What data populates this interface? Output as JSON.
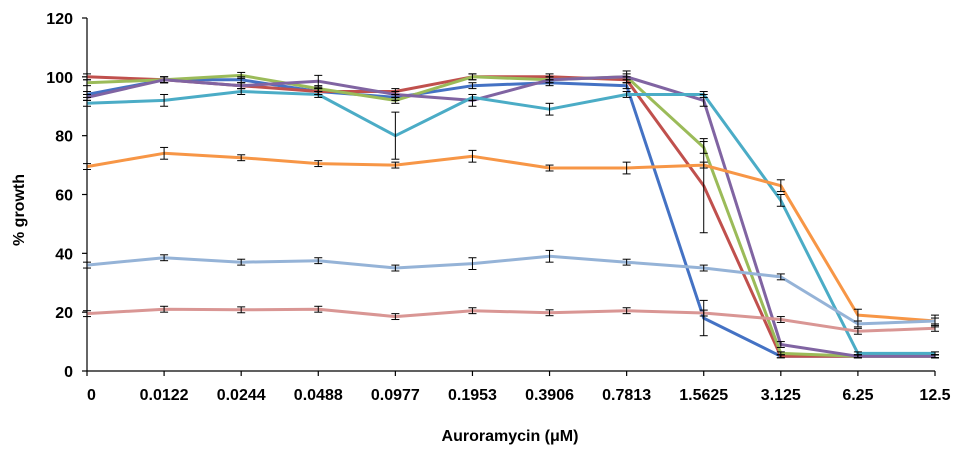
{
  "chart_data": {
    "type": "line",
    "xlabel": "Auroramycin (μM)",
    "ylabel": "% growth",
    "title": "",
    "categories": [
      "0",
      "0.0122",
      "0.0244",
      "0.0488",
      "0.0977",
      "0.1953",
      "0.3906",
      "0.7813",
      "1.5625",
      "3.125",
      "6.25",
      "12.5"
    ],
    "ylim": [
      0,
      120
    ],
    "yticks": [
      0,
      20,
      40,
      60,
      80,
      100,
      120
    ],
    "grid": false,
    "legend": "none",
    "series": [
      {
        "color": "#4472C4",
        "values": [
          94,
          99,
          99,
          95,
          93,
          97,
          98,
          97,
          18,
          5,
          5,
          5
        ],
        "errors": [
          1,
          1,
          1,
          1,
          1,
          1,
          1,
          1,
          6,
          0.5,
          0.5,
          0.5
        ]
      },
      {
        "color": "#C0504D",
        "values": [
          100,
          99,
          97,
          95,
          95,
          100,
          100,
          99,
          63,
          5,
          5,
          5
        ],
        "errors": [
          1,
          1,
          1,
          1,
          1,
          1,
          1,
          1,
          16,
          0.5,
          0.5,
          0.5
        ]
      },
      {
        "color": "#9BBB59",
        "values": [
          98,
          99,
          100.5,
          96,
          92,
          100,
          99,
          100,
          76,
          6,
          5,
          5
        ],
        "errors": [
          1,
          1,
          1,
          1,
          1,
          1,
          1,
          1,
          2,
          0.5,
          0.5,
          0.5
        ]
      },
      {
        "color": "#8064A2",
        "values": [
          93,
          99,
          97,
          98.5,
          94,
          92,
          99,
          100,
          92,
          9,
          5,
          5
        ],
        "errors": [
          1,
          1,
          1,
          2,
          1,
          2,
          1,
          2,
          2,
          1,
          0.5,
          0.5
        ]
      },
      {
        "color": "#4BACC6",
        "values": [
          91,
          92,
          95,
          94,
          80,
          93,
          89,
          94,
          94,
          58,
          6,
          6
        ],
        "errors": [
          1,
          2,
          1,
          1,
          8,
          1,
          2,
          1,
          1,
          2,
          0.5,
          0.5
        ]
      },
      {
        "color": "#F79646",
        "values": [
          69.5,
          74,
          72.5,
          70.5,
          70,
          73,
          69,
          69,
          70,
          63,
          19,
          17
        ],
        "errors": [
          1,
          2,
          1,
          1,
          1,
          2,
          1,
          2,
          1,
          2,
          2,
          2
        ]
      },
      {
        "color": "#95B3D7",
        "values": [
          36,
          38.5,
          37,
          37.5,
          35,
          36.5,
          39,
          37,
          35,
          32,
          16,
          17
        ],
        "errors": [
          1,
          1,
          1,
          1,
          1,
          2,
          2,
          1,
          1,
          1,
          1,
          1
        ]
      },
      {
        "color": "#D99694",
        "values": [
          19.5,
          21,
          20.8,
          21,
          18.5,
          20.5,
          19.8,
          20.5,
          19.7,
          17.5,
          13.5,
          14.5
        ],
        "errors": [
          1,
          1,
          1,
          1,
          1,
          1,
          1,
          1,
          1,
          1,
          1,
          1
        ]
      }
    ]
  }
}
